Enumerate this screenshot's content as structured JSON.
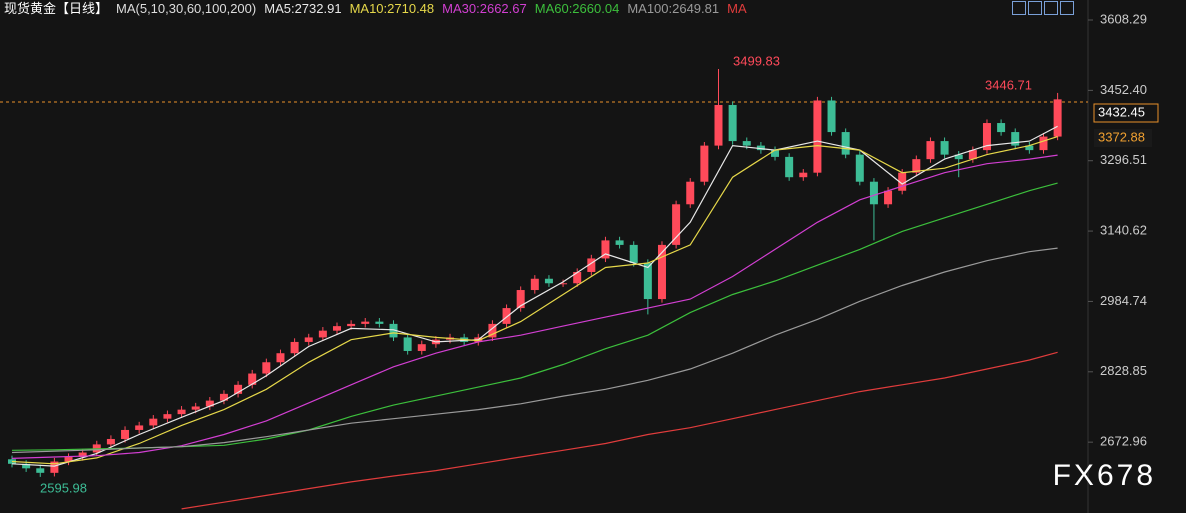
{
  "chart_data": {
    "type": "candlestick",
    "title": "现货黄金【日线】",
    "ma_label": "MA(5,10,30,60,100,200)",
    "watermark": "FX678",
    "annotations": [
      "3499.83",
      "3446.71",
      "2595.98"
    ],
    "price_tags": [
      "3432.45",
      "3372.88"
    ],
    "ylim": [
      2516,
      3652.6
    ],
    "yticks": [
      3608.29,
      {
        "value": 3452.4,
        "label": "3452.40"
      },
      3296.51,
      3140.62,
      2984.74,
      2828.85,
      2672.96
    ],
    "up_color": "#ff4a5a",
    "down_color": "#3dbd96",
    "open": [
      2635,
      2625,
      2615,
      2605,
      2630,
      2640,
      2650,
      2668,
      2680,
      2700,
      2710,
      2725,
      2735,
      2745,
      2752,
      2765,
      2780,
      2800,
      2825,
      2850,
      2870,
      2895,
      2905,
      2920,
      2930,
      2935,
      2940,
      2935,
      2905,
      2875,
      2890,
      2900,
      2905,
      2895,
      2905,
      2935,
      2970,
      3010,
      3035,
      3025,
      3025,
      3050,
      3080,
      3120,
      3110,
      3070,
      2990,
      3110,
      3200,
      3250,
      3330,
      3420,
      3340,
      3330,
      3320,
      3305,
      3260,
      3270,
      3430,
      3360,
      3310,
      3250,
      3200,
      3230,
      3270,
      3300,
      3340,
      3310,
      3300,
      3320,
      3380,
      3360,
      3330,
      3320,
      3350
    ],
    "high": [
      2643,
      2633,
      2623,
      2638,
      2648,
      2658,
      2676,
      2688,
      2708,
      2718,
      2733,
      2743,
      2753,
      2760,
      2773,
      2788,
      2808,
      2833,
      2858,
      2878,
      2903,
      2913,
      2928,
      2938,
      2943,
      2948,
      2948,
      2943,
      2913,
      2898,
      2908,
      2913,
      2913,
      2913,
      2943,
      2978,
      3018,
      3043,
      3043,
      3033,
      3058,
      3088,
      3128,
      3128,
      3118,
      3078,
      3118,
      3208,
      3258,
      3338,
      3499.83,
      3428,
      3348,
      3338,
      3328,
      3313,
      3278,
      3438,
      3438,
      3368,
      3318,
      3258,
      3238,
      3278,
      3308,
      3348,
      3348,
      3318,
      3328,
      3388,
      3388,
      3368,
      3338,
      3358,
      3446.71
    ],
    "low": [
      2617,
      2607,
      2595.98,
      2597,
      2622,
      2632,
      2642,
      2660,
      2672,
      2692,
      2702,
      2717,
      2727,
      2737,
      2744,
      2757,
      2772,
      2792,
      2817,
      2842,
      2862,
      2887,
      2897,
      2912,
      2922,
      2927,
      2927,
      2897,
      2867,
      2867,
      2882,
      2892,
      2887,
      2887,
      2897,
      2927,
      2962,
      3002,
      3017,
      3017,
      3017,
      3042,
      3072,
      3102,
      3062,
      2956,
      2982,
      3102,
      3192,
      3242,
      3322,
      3332,
      3322,
      3312,
      3297,
      3252,
      3252,
      3262,
      3352,
      3302,
      3242,
      3120,
      3192,
      3222,
      3262,
      3292,
      3302,
      3260,
      3292,
      3312,
      3352,
      3322,
      3312,
      3312,
      3342
    ],
    "close": [
      2625,
      2615,
      2605,
      2630,
      2640,
      2650,
      2668,
      2680,
      2700,
      2710,
      2725,
      2735,
      2745,
      2752,
      2765,
      2780,
      2800,
      2825,
      2850,
      2870,
      2895,
      2905,
      2920,
      2930,
      2935,
      2940,
      2935,
      2905,
      2875,
      2890,
      2900,
      2905,
      2895,
      2905,
      2935,
      2970,
      3010,
      3035,
      3025,
      3025,
      3050,
      3080,
      3120,
      3110,
      3070,
      2990,
      3110,
      3200,
      3250,
      3330,
      3420,
      3340,
      3330,
      3320,
      3305,
      3260,
      3270,
      3430,
      3360,
      3310,
      3250,
      3200,
      3230,
      3270,
      3300,
      3340,
      3310,
      3300,
      3320,
      3380,
      3360,
      3330,
      3320,
      3350,
      3432.45
    ],
    "series": [
      {
        "name": "MA5:2732.91",
        "color": "#e8e8e8",
        "x": [
          0,
          3,
          6,
          9,
          12,
          15,
          18,
          21,
          24,
          27,
          30,
          33,
          36,
          39,
          42,
          45,
          48,
          51,
          54,
          57,
          60,
          63,
          66,
          69,
          72,
          74
        ],
        "values": [
          2625,
          2620,
          2648,
          2690,
          2728,
          2765,
          2820,
          2885,
          2925,
          2922,
          2895,
          2900,
          2975,
          3028,
          3090,
          3060,
          3160,
          3330,
          3320,
          3340,
          3320,
          3245,
          3300,
          3330,
          3340,
          3372.88
        ]
      },
      {
        "name": "MA10:2710.48",
        "color": "#e6d84a",
        "x": [
          0,
          3,
          6,
          9,
          12,
          15,
          18,
          21,
          24,
          27,
          30,
          33,
          36,
          39,
          42,
          45,
          48,
          51,
          54,
          57,
          60,
          63,
          66,
          69,
          72,
          74
        ],
        "values": [
          2630,
          2625,
          2638,
          2670,
          2710,
          2745,
          2790,
          2850,
          2900,
          2915,
          2905,
          2898,
          2940,
          3000,
          3060,
          3070,
          3110,
          3260,
          3320,
          3330,
          3320,
          3270,
          3280,
          3310,
          3330,
          3350
        ]
      },
      {
        "name": "MA30:2662.67",
        "color": "#d23fd2",
        "x": [
          0,
          3,
          6,
          9,
          12,
          15,
          18,
          21,
          24,
          27,
          30,
          33,
          36,
          39,
          42,
          45,
          48,
          51,
          54,
          57,
          60,
          63,
          66,
          69,
          72,
          74
        ],
        "values": [
          2637,
          2640,
          2643,
          2650,
          2665,
          2690,
          2720,
          2760,
          2800,
          2840,
          2870,
          2895,
          2910,
          2930,
          2950,
          2970,
          2990,
          3040,
          3100,
          3160,
          3210,
          3240,
          3270,
          3290,
          3300,
          3309
        ]
      },
      {
        "name": "MA60:2660.04",
        "color": "#3cbf3c",
        "x": [
          0,
          3,
          6,
          9,
          12,
          15,
          18,
          21,
          24,
          27,
          30,
          33,
          36,
          39,
          42,
          45,
          48,
          51,
          54,
          57,
          60,
          63,
          66,
          69,
          72,
          74
        ],
        "values": [
          2655,
          2656,
          2658,
          2660,
          2663,
          2666,
          2680,
          2700,
          2730,
          2755,
          2775,
          2795,
          2815,
          2845,
          2880,
          2910,
          2960,
          3000,
          3030,
          3065,
          3100,
          3140,
          3170,
          3200,
          3230,
          3247
        ]
      },
      {
        "name": "MA100:2649.81",
        "color": "#9a9a9a",
        "x": [
          0,
          3,
          6,
          9,
          12,
          15,
          18,
          21,
          24,
          27,
          30,
          33,
          36,
          39,
          42,
          45,
          48,
          51,
          54,
          57,
          60,
          63,
          66,
          69,
          72,
          74
        ],
        "values": [
          2650,
          2653,
          2656,
          2660,
          2663,
          2672,
          2685,
          2700,
          2715,
          2725,
          2735,
          2745,
          2758,
          2775,
          2790,
          2810,
          2835,
          2870,
          2910,
          2945,
          2985,
          3020,
          3050,
          3075,
          3095,
          3103
        ]
      },
      {
        "name": "MA",
        "color": "#e03c3c",
        "x": [
          0,
          3,
          6,
          9,
          12,
          15,
          18,
          21,
          24,
          27,
          30,
          33,
          36,
          39,
          42,
          45,
          48,
          51,
          54,
          57,
          60,
          63,
          66,
          69,
          72,
          74
        ],
        "values": [
          null,
          null,
          null,
          null,
          2525,
          2540,
          2555,
          2570,
          2585,
          2598,
          2610,
          2625,
          2640,
          2655,
          2670,
          2690,
          2705,
          2725,
          2745,
          2765,
          2785,
          2800,
          2815,
          2835,
          2855,
          2872
        ]
      }
    ]
  }
}
